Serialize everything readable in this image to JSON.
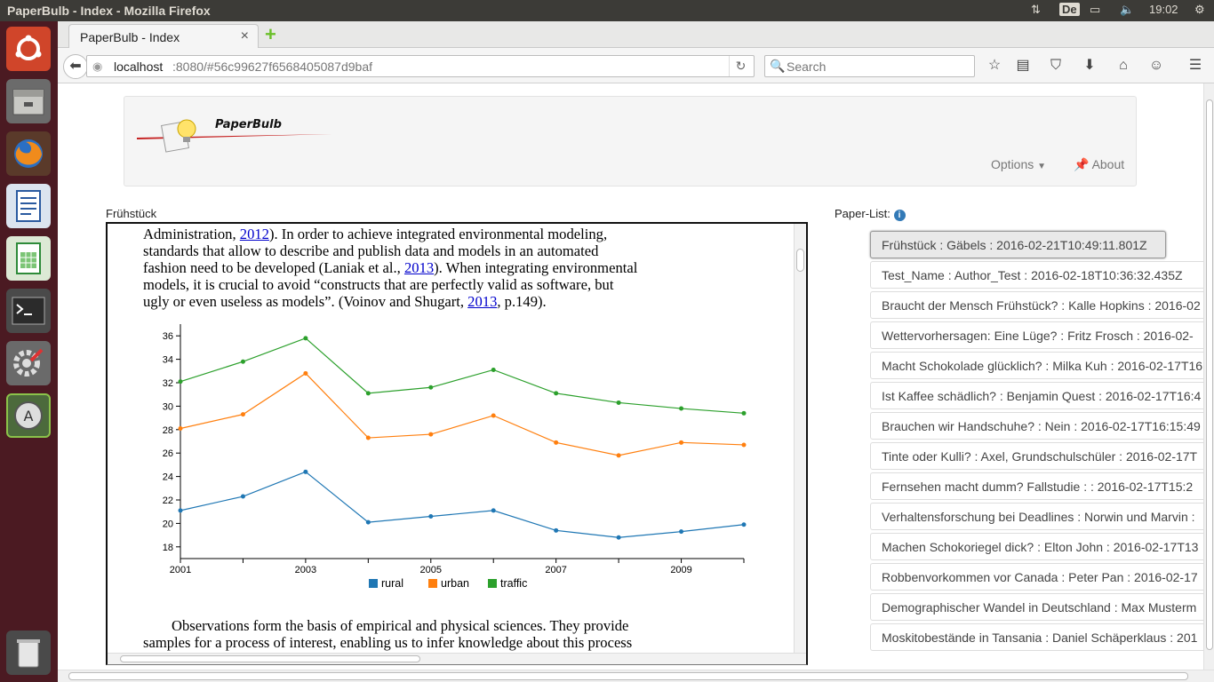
{
  "window": {
    "title": "PaperBulb - Index - Mozilla Firefox",
    "clock": "19:02",
    "lang": "De"
  },
  "tab": {
    "title": "PaperBulb - Index",
    "close": "×",
    "new": "+"
  },
  "url": {
    "host": "localhost",
    "rest": ":8080/#56c99627f6568405087d9baf"
  },
  "search": {
    "placeholder": "Search"
  },
  "app": {
    "logo": "PaperBulb",
    "nav_options": "Options",
    "nav_about": "About"
  },
  "doc": {
    "label": "Frühstück",
    "p1": [
      {
        "t": "Administration, "
      },
      {
        "a": "2012"
      },
      {
        "t": "). In order to achieve integrated environmental modeling,"
      }
    ],
    "lines": [
      [
        "Administration, ",
        "2012",
        "). In order to achieve integrated environmental modeling,"
      ],
      [
        "standards that allow to describe and publish data and models in an automated",
        "",
        ""
      ],
      [
        "fashion need to be developed (Laniak et al., ",
        "2013",
        "). When integrating environmental"
      ],
      [
        "models, it is crucial to avoid “constructs that are perfectly valid as software, but",
        "",
        ""
      ],
      [
        "ugly or even useless as models”. (Voinov and Shugart, ",
        "2013",
        ", p.149)."
      ]
    ],
    "p2_line1": "Observations form the basis of empirical and physical sciences. They provide",
    "p2_line2": "samples for a process of interest, enabling us to infer knowledge about this process"
  },
  "chart_data": {
    "type": "line",
    "x": [
      2001,
      2002,
      2003,
      2004,
      2005,
      2006,
      2007,
      2008,
      2009,
      2010
    ],
    "x_tick_labels": [
      "2001",
      "2003",
      "2005",
      "2007",
      "2009"
    ],
    "ylim": [
      17,
      37
    ],
    "y_ticks": [
      18,
      20,
      22,
      24,
      26,
      28,
      30,
      32,
      34,
      36
    ],
    "series": [
      {
        "name": "rural",
        "color": "#1f77b4",
        "values": [
          21.1,
          22.3,
          24.4,
          20.1,
          20.6,
          21.1,
          19.4,
          18.8,
          19.3,
          19.9
        ]
      },
      {
        "name": "urban",
        "color": "#ff7f0e",
        "values": [
          28.1,
          29.3,
          32.8,
          27.3,
          27.6,
          29.2,
          26.9,
          25.8,
          26.9,
          26.7
        ]
      },
      {
        "name": "traffic",
        "color": "#2ca02c",
        "values": [
          32.1,
          33.8,
          35.8,
          31.1,
          31.6,
          33.1,
          31.1,
          30.3,
          29.8,
          29.4
        ]
      }
    ],
    "legend_position": "bottom-center"
  },
  "paper_list": {
    "label": "Paper-List:",
    "items": [
      "Frühstück : Gäbels : 2016-02-21T10:49:11.801Z",
      "Test_Name : Author_Test : 2016-02-18T10:36:32.435Z",
      "Braucht der Mensch Frühstück? : Kalle Hopkins : 2016-02",
      "Wettervorhersagen: Eine Lüge? : Fritz Frosch : 2016-02-",
      "Macht Schokolade glücklich? : Milka Kuh : 2016-02-17T16",
      "Ist Kaffee schädlich? : Benjamin Quest : 2016-02-17T16:4",
      "Brauchen wir Handschuhe? : Nein : 2016-02-17T16:15:49",
      "Tinte oder Kulli? : Axel, Grundschulschüler : 2016-02-17T",
      "Fernsehen macht dumm? Fallstudie : : 2016-02-17T15:2",
      "Verhaltensforschung bei Deadlines : Norwin und Marvin :",
      "Machen Schokoriegel dick? : Elton John : 2016-02-17T13",
      "Robbenvorkommen vor Canada : Peter Pan : 2016-02-17",
      "Demographischer Wandel in Deutschland : Max Musterm",
      "Moskitobestände in Tansania : Daniel Schäperklaus : 201"
    ]
  }
}
